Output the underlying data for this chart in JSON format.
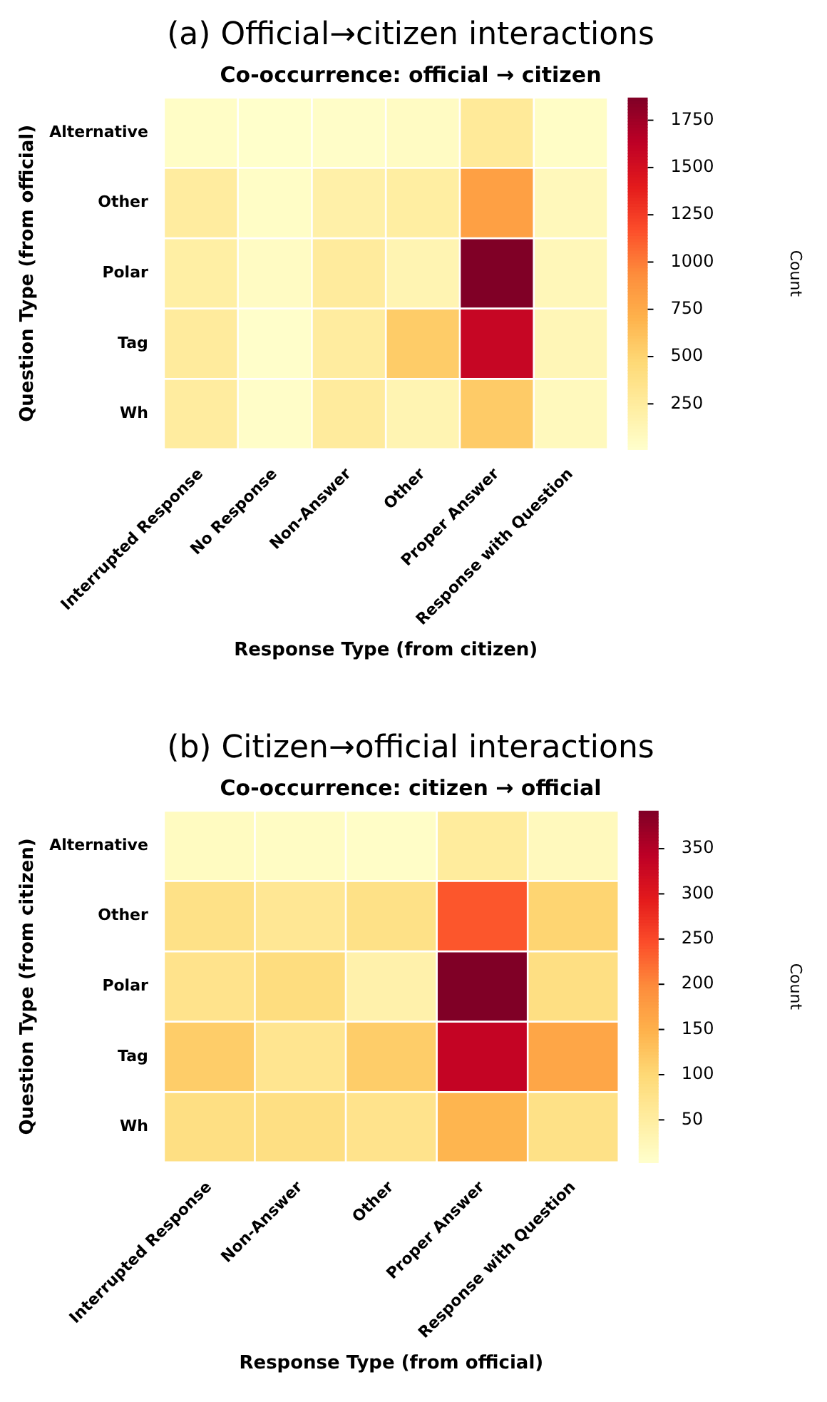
{
  "chart_data": [
    {
      "type": "heatmap",
      "title": "(a) Official→citizen interactions",
      "subtitle": "Co-occurrence: official → citizen",
      "xlabel": "Response Type (from citizen)",
      "ylabel": "Question Type (from official)",
      "clabel": "Count",
      "categories": [
        "Interrupted Response",
        "No Response",
        "Non-Answer",
        "Other",
        "Proper Answer",
        "Response with Question"
      ],
      "y_categories": [
        "Alternative",
        "Other",
        "Polar",
        "Tag",
        "Wh"
      ],
      "cells": [
        [
          40,
          15,
          30,
          60,
          280,
          40
        ],
        [
          250,
          40,
          200,
          230,
          820,
          100
        ],
        [
          220,
          60,
          260,
          150,
          1870,
          110
        ],
        [
          260,
          20,
          250,
          550,
          1580,
          120
        ],
        [
          250,
          30,
          260,
          150,
          560,
          90
        ]
      ],
      "clim": [
        10,
        1870
      ],
      "cticks": [
        250,
        500,
        750,
        1000,
        1250,
        1500,
        1750
      ]
    },
    {
      "type": "heatmap",
      "title": "(b) Citizen→official interactions",
      "subtitle": "Co-occurrence: citizen → official",
      "xlabel": "Response Type (from official)",
      "ylabel": "Question Type (from citizen)",
      "clabel": "Count",
      "categories": [
        "Interrupted Response",
        "Non-Answer",
        "Other",
        "Proper Answer",
        "Response with Question"
      ],
      "y_categories": [
        "Alternative",
        "Other",
        "Polar",
        "Tag",
        "Wh"
      ],
      "cells": [
        [
          15,
          12,
          8,
          55,
          20
        ],
        [
          80,
          65,
          80,
          240,
          105
        ],
        [
          75,
          90,
          40,
          392,
          85
        ],
        [
          115,
          70,
          115,
          335,
          165
        ],
        [
          85,
          85,
          75,
          145,
          80
        ]
      ],
      "clim": [
        3,
        392
      ],
      "cticks": [
        50,
        100,
        150,
        200,
        250,
        300,
        350
      ]
    }
  ]
}
